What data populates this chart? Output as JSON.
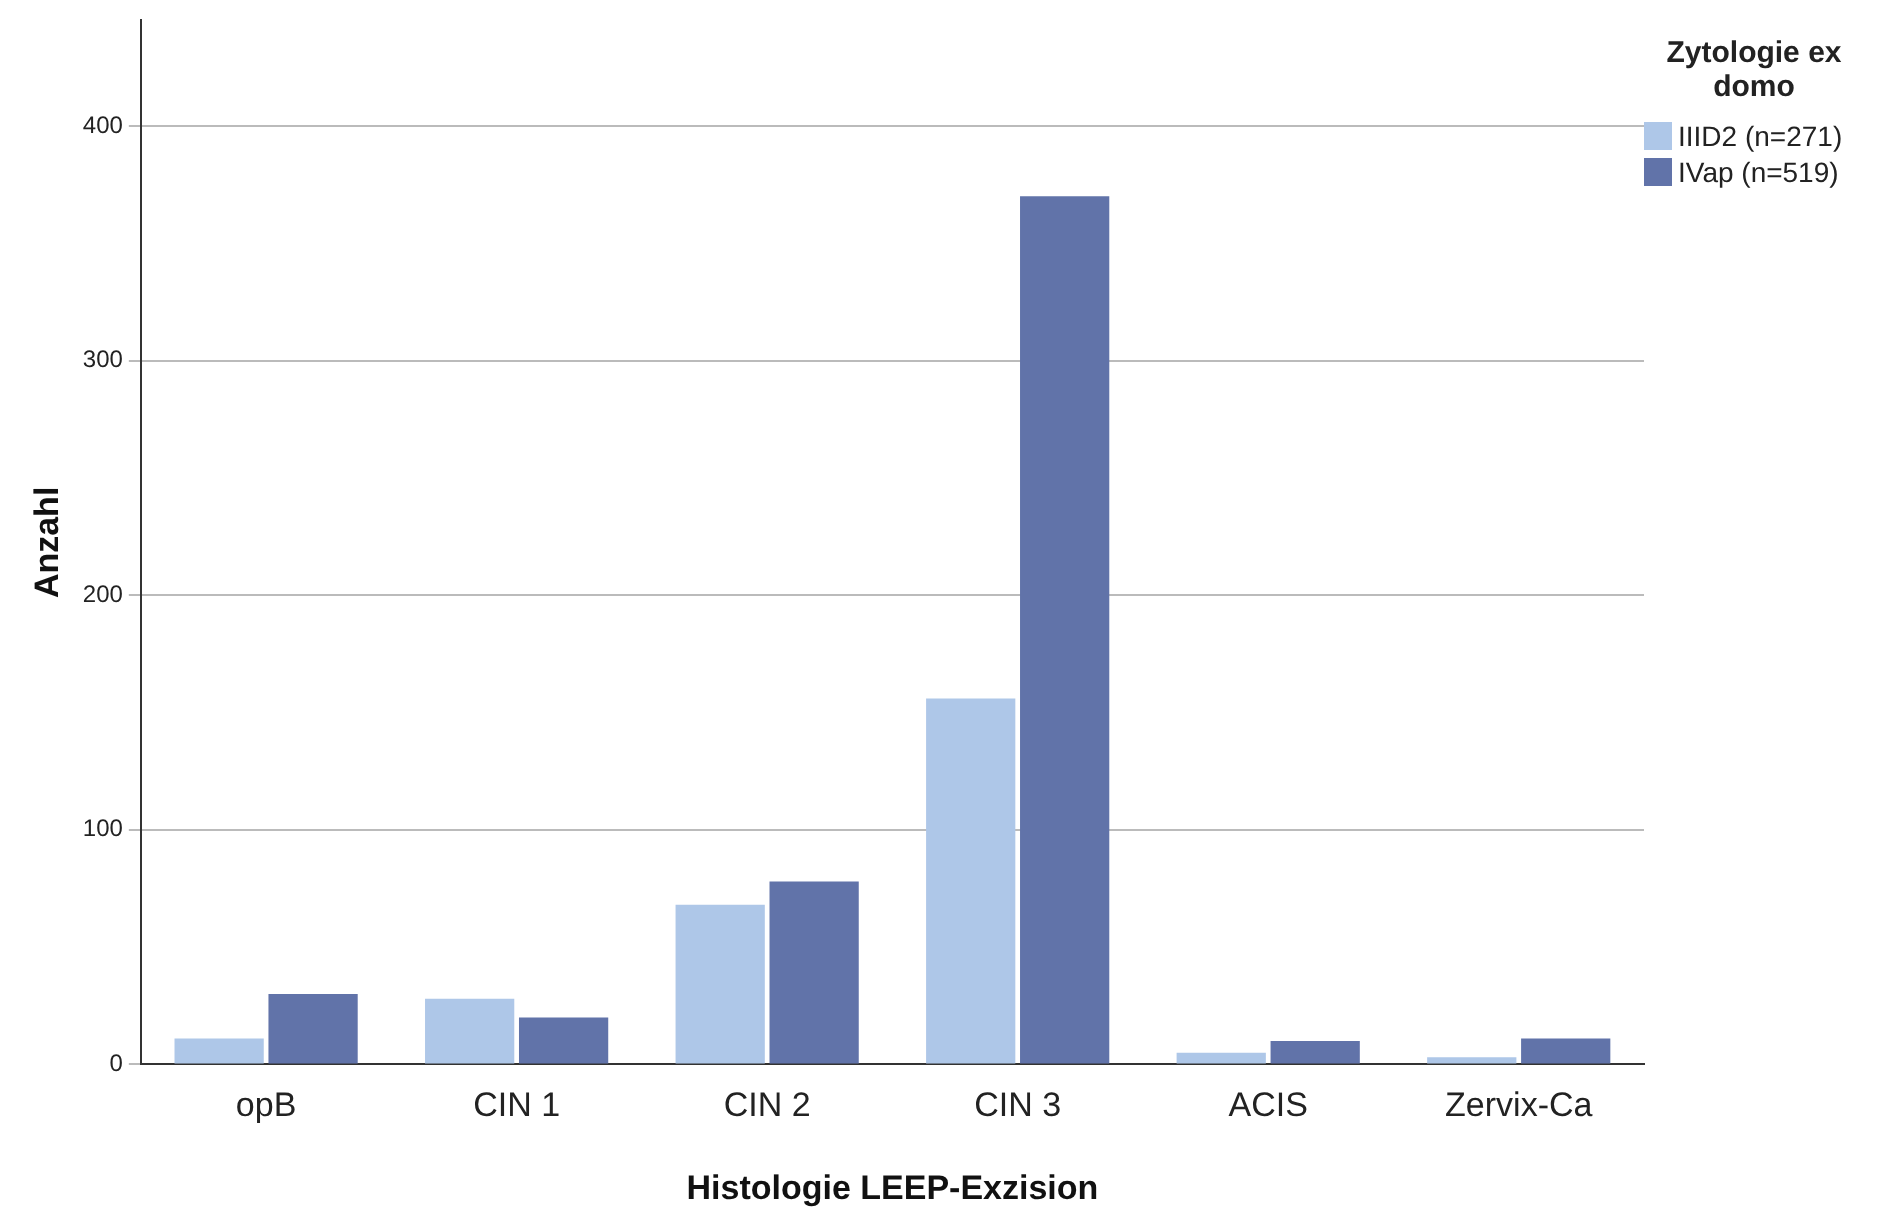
{
  "chart_data": {
    "type": "bar",
    "xlabel": "Histologie LEEP-Exzision",
    "ylabel": "Anzahl",
    "legend_title": "Zytologie ex domo",
    "categories": [
      "opB",
      "CIN 1",
      "CIN 2",
      "CIN 3",
      "ACIS",
      "Zervix-Ca"
    ],
    "series": [
      {
        "name": "IIID2 (n=271)",
        "color": "#aec7e8",
        "values": [
          11,
          28,
          68,
          156,
          5,
          3
        ]
      },
      {
        "name": "IVap (n=519)",
        "color": "#6173a9",
        "values": [
          30,
          20,
          78,
          370,
          10,
          11
        ]
      }
    ],
    "ylim": [
      0,
      445
    ],
    "yticks": [
      0,
      100,
      200,
      300,
      400
    ],
    "grid": "y",
    "legend": "top right"
  }
}
